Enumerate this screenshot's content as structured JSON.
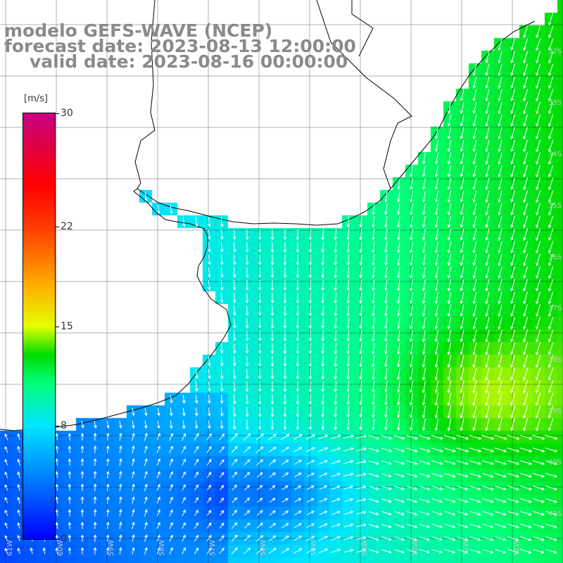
{
  "title": {
    "line1": "modelo GEFS-WAVE (NCEP)",
    "line2": "forecast date: 2023-08-13 12:00:00",
    "line3": "valid date: 2023-08-16 00:00:00"
  },
  "colorbar": {
    "unit": "[m/s]",
    "min": 0,
    "max": 30,
    "ticks": [
      "30",
      "22",
      "15",
      "8",
      "0"
    ],
    "tick_values": [
      30,
      22,
      15,
      8,
      0
    ]
  },
  "axes": {
    "lat_labels": [
      "32S",
      "33S",
      "34S",
      "35S",
      "36S",
      "37S",
      "38S",
      "39S",
      "40S",
      "41S"
    ],
    "lon_labels": [
      "61W",
      "60W",
      "59W",
      "58W",
      "57W",
      "56W",
      "55W",
      "54W",
      "53W",
      "52W",
      "51W"
    ]
  },
  "colors": {
    "land": "#ffffff",
    "coast": "#000000",
    "grid": "#000000",
    "arrow": "#ffffff"
  }
}
